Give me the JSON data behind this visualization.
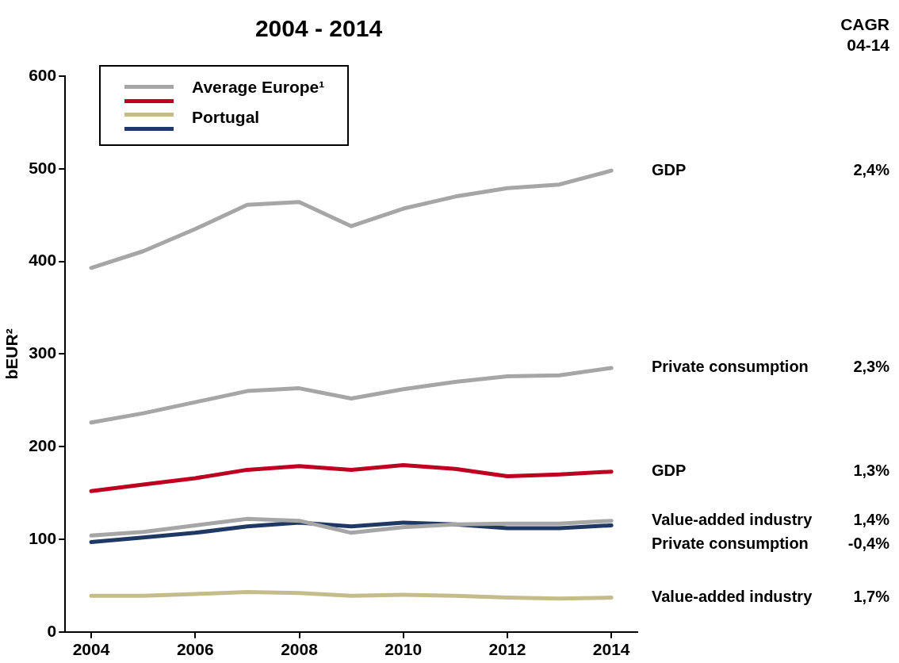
{
  "chart_data": {
    "type": "line",
    "title": "2004 - 2014",
    "ylabel": "bEUR²",
    "x": [
      2004,
      2005,
      2006,
      2007,
      2008,
      2009,
      2010,
      2011,
      2012,
      2013,
      2014
    ],
    "xlim": [
      2003.5,
      2014.5
    ],
    "xticks": [
      2004,
      2006,
      2008,
      2010,
      2012,
      2014
    ],
    "ylim": [
      0,
      600
    ],
    "yticks": [
      0,
      100,
      200,
      300,
      400,
      500,
      600
    ],
    "grid": false,
    "legend": "right",
    "marker": "none",
    "line_style": "solid",
    "series": [
      {
        "name": "GDP",
        "color": "#a6a6a6",
        "values": [
          393,
          411,
          435,
          461,
          464,
          438,
          457,
          470,
          479,
          483,
          498
        ]
      },
      {
        "name": "Private consumption",
        "color": "#a6a6a6",
        "values": [
          226,
          236,
          248,
          260,
          263,
          252,
          262,
          270,
          276,
          277,
          285
        ]
      },
      {
        "name": "GDP",
        "color": "#c00020",
        "values": [
          152,
          159,
          166,
          175,
          179,
          175,
          180,
          176,
          168,
          170,
          173
        ]
      },
      {
        "name": "Value-added industry",
        "color": "#a6a6a6",
        "values": [
          104,
          108,
          115,
          122,
          120,
          107,
          113,
          116,
          117,
          117,
          120
        ]
      },
      {
        "name": "Private consumption",
        "color": "#1f3864",
        "values": [
          97,
          102,
          107,
          114,
          118,
          114,
          118,
          116,
          112,
          112,
          115
        ]
      },
      {
        "name": "Value-added industry",
        "color": "#c4bc8a",
        "values": [
          39,
          39,
          41,
          43,
          42,
          39,
          40,
          39,
          37,
          36,
          37
        ]
      }
    ],
    "annotations": [
      "CAGR 04-14",
      "Average Europe¹",
      "Portugal",
      "2,4%",
      "2,3%",
      "1,3%",
      "1,4%",
      "-0,4%",
      "1,7%"
    ]
  }
}
